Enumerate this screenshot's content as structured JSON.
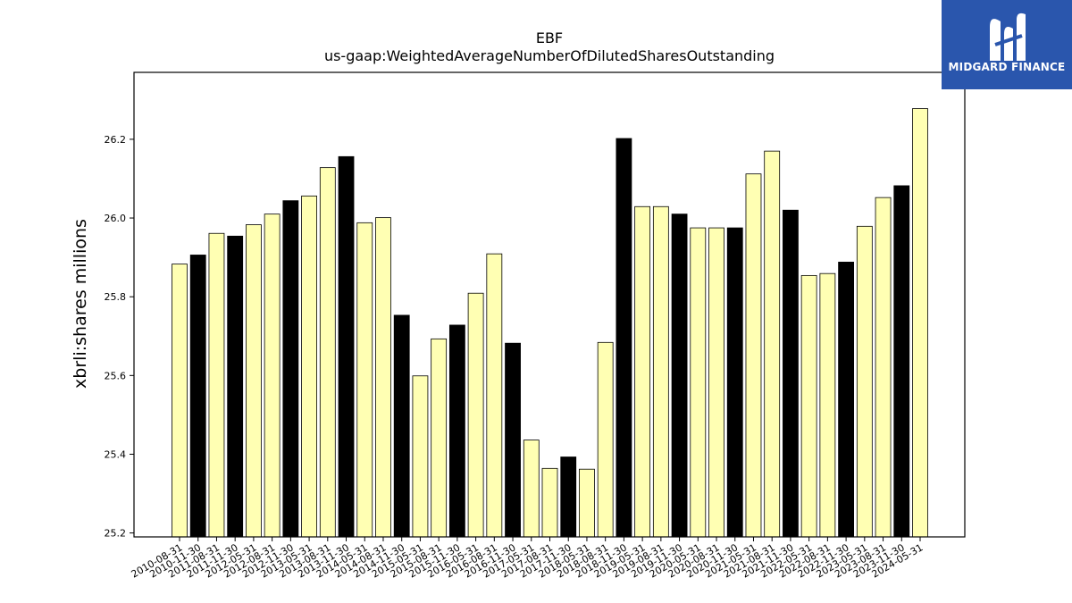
{
  "logo": {
    "name": "MIDGARD FINANCE",
    "icon": "midgard-m-logo-icon",
    "bg_color": "#2a56ad"
  },
  "colors": {
    "bar_light": "#ffffb3",
    "bar_dark": "#000000"
  },
  "chart_data": {
    "type": "bar",
    "title": "EBF",
    "subtitle": "us-gaap:WeightedAverageNumberOfDilutedSharesOutstanding",
    "xlabel": "",
    "ylabel": "xbrli:shares millions",
    "ylim": [
      25.19,
      26.37
    ],
    "yticks": [
      "25.2",
      "25.4",
      "25.6",
      "25.8",
      "26.0",
      "26.2"
    ],
    "grid": false,
    "categories": [
      "2010-08-31",
      "2010-11-30",
      "2011-08-31",
      "2011-11-30",
      "2012-05-31",
      "2012-08-31",
      "2012-11-30",
      "2013-05-31",
      "2013-08-31",
      "2013-11-30",
      "2014-05-31",
      "2014-08-31",
      "2014-11-30",
      "2015-05-31",
      "2015-08-31",
      "2015-11-30",
      "2016-05-31",
      "2016-08-31",
      "2016-11-30",
      "2017-05-31",
      "2017-08-31",
      "2017-11-30",
      "2018-05-31",
      "2018-08-31",
      "2018-11-30",
      "2019-05-31",
      "2019-08-31",
      "2019-11-30",
      "2020-05-31",
      "2020-08-31",
      "2020-11-30",
      "2021-05-31",
      "2021-08-31",
      "2021-11-30",
      "2022-05-31",
      "2022-08-31",
      "2022-11-30",
      "2023-05-31",
      "2023-08-31",
      "2023-11-30",
      "2024-05-31"
    ],
    "values": [
      25.883,
      25.906,
      25.961,
      25.954,
      25.983,
      26.01,
      26.044,
      26.056,
      26.128,
      26.156,
      25.988,
      26.001,
      25.753,
      25.599,
      25.693,
      25.728,
      25.809,
      25.909,
      25.682,
      25.436,
      25.364,
      25.393,
      25.362,
      25.684,
      26.202,
      26.029,
      26.029,
      26.01,
      25.975,
      25.975,
      25.975,
      26.112,
      26.17,
      26.02,
      25.854,
      25.859,
      25.888,
      25.979,
      26.052,
      26.082,
      26.278
    ],
    "bar_colors": [
      "light",
      "dark",
      "light",
      "dark",
      "light",
      "light",
      "dark",
      "light",
      "light",
      "dark",
      "light",
      "light",
      "dark",
      "light",
      "light",
      "dark",
      "light",
      "light",
      "dark",
      "light",
      "light",
      "dark",
      "light",
      "light",
      "dark",
      "light",
      "light",
      "dark",
      "light",
      "light",
      "dark",
      "light",
      "light",
      "dark",
      "light",
      "light",
      "dark",
      "light",
      "light",
      "dark",
      "light"
    ]
  }
}
